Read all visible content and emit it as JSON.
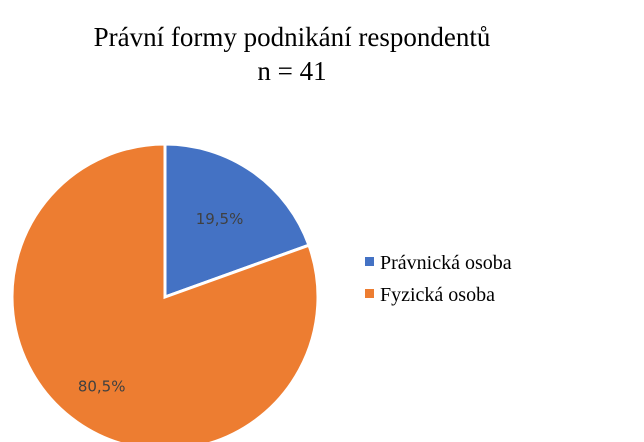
{
  "chart_data": {
    "type": "pie",
    "title": "Právní formy podnikání respondentů",
    "subtitle": "n = 41",
    "categories": [
      "Právnická osoba",
      "Fyzická osoba"
    ],
    "values": [
      19.5,
      80.5
    ],
    "value_labels": [
      "19,5%",
      "80,5%"
    ],
    "colors": [
      "#4472c4",
      "#ed7d31"
    ],
    "legend": "right"
  }
}
